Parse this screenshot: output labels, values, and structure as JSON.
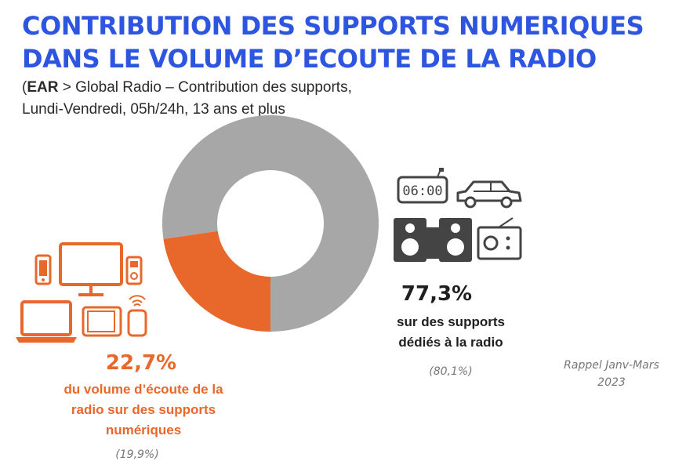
{
  "title": {
    "line1": "CONTRIBUTION DES SUPPORTS NUMERIQUES",
    "line2": "DANS LE VOLUME D’ECOUTE DE LA RADIO"
  },
  "subtitle": {
    "open_paren": "(",
    "bold": "EAR",
    "line1_rest": " > Global Radio – Contribution des supports,",
    "line2": "Lundi-Vendredi, 05h/24h, 13 ans et plus"
  },
  "chart_data": {
    "type": "pie",
    "donut": true,
    "slices": [
      {
        "label": "sur des supports dédiés à la radio",
        "value": 77.3,
        "display": "77,3%",
        "previous": "(80,1%)",
        "color": "#a7a7a7"
      },
      {
        "label": "du volume d’écoute de la radio sur des supports numériques",
        "value": 22.7,
        "display": "22,7%",
        "previous": "(19,9%)",
        "color": "#e8672a"
      }
    ],
    "rappel": "Rappel Janv-Mars 2023"
  },
  "right": {
    "pct": "77,3%",
    "line1": "sur des supports",
    "line2": "dédiés à la radio",
    "previous": "(80,1%)",
    "icons": [
      "alarm-clock-icon",
      "car-icon",
      "speakers-icon",
      "radio-icon"
    ],
    "clock_text": "06:00"
  },
  "left": {
    "pct": "22,7%",
    "line1": "du volume d’écoute de la",
    "line2": "radio sur des supports",
    "line3": "numériques",
    "previous": "(19,9%)",
    "icons": [
      "smartphone-icon",
      "monitor-icon",
      "mp3-player-icon",
      "laptop-icon",
      "tablet-icon",
      "smart-speaker-icon"
    ]
  },
  "rappel": {
    "line1": "Rappel Janv-Mars",
    "line2": "2023"
  },
  "colors": {
    "title": "#2d55e0",
    "digital": "#e8672a",
    "radio": "#a7a7a7",
    "icon_dark": "#444444"
  }
}
